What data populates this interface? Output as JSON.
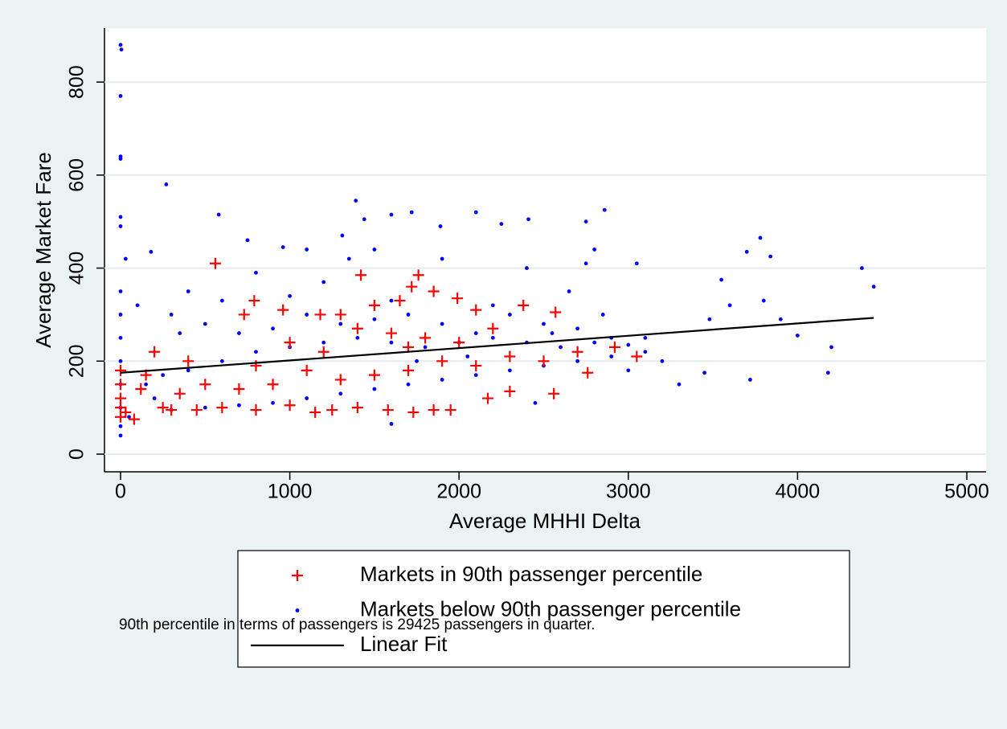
{
  "chart_data": {
    "type": "scatter",
    "x_label": "Average MHHI Delta",
    "y_label": "Average Market Fare",
    "note": "90th percentile in terms of passengers is 29425 passengers in quarter.",
    "xlim": [
      -95,
      5114
    ],
    "ylim": [
      -38,
      916
    ],
    "xticks": [
      0,
      1000,
      2000,
      3000,
      4000,
      5000
    ],
    "yticks": [
      0,
      200,
      400,
      600,
      800
    ],
    "grid": true,
    "legend": "bottom",
    "series": [
      {
        "name": "Markets in 90th passenger percentile",
        "color": "#ff0000",
        "mark": "plus",
        "x": [
          560,
          1420,
          1760,
          1720,
          1990,
          2380,
          2570,
          790,
          730,
          960,
          1180,
          1300,
          1500,
          1650,
          1850,
          2100,
          0,
          0,
          0,
          0,
          0,
          30,
          80,
          120,
          200,
          250,
          300,
          450,
          600,
          800,
          1000,
          1150,
          1250,
          1400,
          1580,
          1730,
          1850,
          1950,
          2170,
          2300,
          2560,
          2760,
          2920,
          3050,
          2700,
          2500,
          2300,
          2100,
          1900,
          1700,
          1500,
          1300,
          1100,
          900,
          700,
          500,
          350,
          150,
          400,
          1600,
          1800,
          2000,
          1200,
          800,
          1000,
          1400,
          1700,
          2200
        ],
        "y": [
          410,
          385,
          385,
          360,
          335,
          320,
          305,
          330,
          300,
          310,
          300,
          300,
          320,
          330,
          350,
          310,
          180,
          150,
          120,
          100,
          80,
          90,
          75,
          140,
          220,
          100,
          95,
          95,
          100,
          95,
          105,
          90,
          95,
          100,
          95,
          90,
          95,
          95,
          120,
          135,
          130,
          175,
          230,
          210,
          220,
          200,
          210,
          190,
          200,
          180,
          170,
          160,
          180,
          150,
          140,
          150,
          130,
          170,
          200,
          260,
          250,
          240,
          220,
          190,
          240,
          270,
          230,
          270
        ]
      },
      {
        "name": "Markets below 90th passenger percentile",
        "color": "#0000ff",
        "mark": "dot",
        "x": [
          0,
          5,
          0,
          0,
          0,
          270,
          580,
          0,
          0,
          30,
          180,
          750,
          960,
          1100,
          1310,
          1390,
          1440,
          1600,
          1720,
          1890,
          2100,
          2250,
          2410,
          2750,
          2860,
          2800,
          2750,
          3050,
          3550,
          3700,
          3780,
          3840,
          4380,
          4450,
          3800,
          3600,
          3480,
          3900,
          4000,
          4200,
          4180,
          3720,
          3450,
          3300,
          3100,
          2900,
          2700,
          2500,
          2300,
          2100,
          1900,
          1700,
          1500,
          1300,
          1100,
          900,
          700,
          500,
          300,
          100,
          0,
          0,
          0,
          0,
          0,
          0,
          0,
          0,
          50,
          150,
          250,
          400,
          600,
          800,
          1000,
          1200,
          1400,
          1600,
          1800,
          2000,
          2200,
          2400,
          2600,
          2800,
          3000,
          3100,
          2900,
          2700,
          2500,
          2300,
          2100,
          1900,
          1700,
          1500,
          1300,
          1100,
          900,
          700,
          500,
          300,
          200,
          1600,
          2450,
          3000,
          3200,
          2200,
          1600,
          1000,
          400,
          800,
          1350,
          1500,
          1900,
          2400,
          2650,
          2850,
          1200,
          600,
          350,
          1750,
          2050,
          2550
        ],
        "y": [
          880,
          870,
          770,
          640,
          635,
          580,
          515,
          510,
          490,
          420,
          435,
          460,
          445,
          440,
          470,
          545,
          505,
          515,
          520,
          490,
          520,
          495,
          505,
          500,
          525,
          440,
          410,
          410,
          375,
          435,
          465,
          425,
          400,
          360,
          330,
          320,
          290,
          290,
          255,
          230,
          175,
          160,
          175,
          150,
          220,
          250,
          270,
          280,
          300,
          260,
          280,
          300,
          290,
          280,
          300,
          270,
          260,
          280,
          300,
          320,
          350,
          300,
          250,
          200,
          150,
          100,
          60,
          40,
          80,
          150,
          170,
          180,
          200,
          220,
          230,
          240,
          250,
          240,
          230,
          240,
          250,
          240,
          230,
          240,
          235,
          250,
          210,
          200,
          190,
          180,
          170,
          160,
          150,
          140,
          130,
          120,
          110,
          105,
          100,
          95,
          120,
          65,
          110,
          180,
          200,
          320,
          330,
          340,
          350,
          390,
          420,
          440,
          420,
          400,
          350,
          300,
          370,
          330,
          260,
          200,
          210,
          260
        ]
      },
      {
        "name": "Linear Fit",
        "color": "#000000",
        "mark": "line",
        "x": [
          0,
          4450
        ],
        "y": [
          175,
          293
        ]
      }
    ]
  }
}
